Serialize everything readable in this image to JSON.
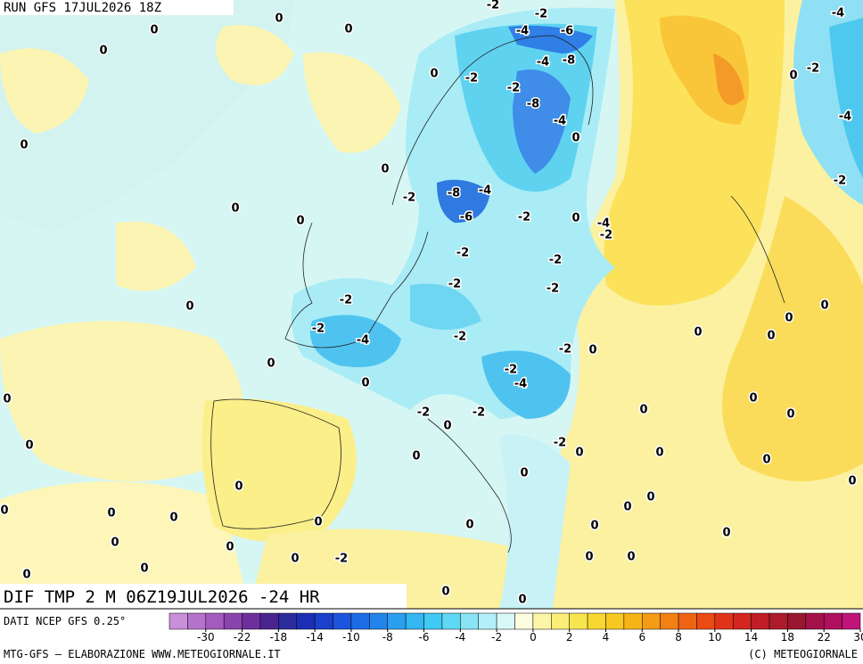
{
  "header": {
    "run": "RUN GFS 17JUL2026 18Z",
    "product": "DIF TMP 2 M 06Z19JUL2026 -24 HR"
  },
  "map": {
    "contour_labels": [
      0,
      0,
      0,
      0,
      -2,
      -2,
      -4,
      -6,
      -4,
      -4,
      -8,
      -2,
      0,
      0,
      -2,
      -2,
      -8,
      -4,
      0,
      -4,
      0,
      0,
      -2,
      -2,
      -8,
      -4,
      0,
      -6,
      -2,
      0,
      -4,
      -2,
      0,
      -2,
      -2,
      -2,
      -2,
      -2,
      0,
      0,
      0,
      -2,
      -4,
      -2,
      0,
      0,
      -2,
      0,
      0,
      -2,
      0,
      -4,
      0,
      0,
      -2,
      -2,
      0,
      0,
      0,
      -2,
      0,
      0,
      0,
      0,
      0,
      0,
      0,
      0,
      0,
      0,
      0,
      0,
      0,
      0,
      0,
      0,
      0,
      0,
      0,
      -2,
      0,
      0,
      0,
      0,
      0,
      0,
      0
    ]
  },
  "legend": {
    "source": "DATI NCEP GFS 0.25°",
    "ticks": [
      -30,
      -22,
      -18,
      -14,
      -10,
      -8,
      -6,
      -4,
      -2,
      0,
      2,
      4,
      6,
      8,
      10,
      14,
      18,
      22,
      30
    ]
  },
  "footer": {
    "left": "MTG-GFS — ELABORAZIONE WWW.METEOGIORNALE.IT",
    "right": "(C) METEOGIORNALE"
  }
}
